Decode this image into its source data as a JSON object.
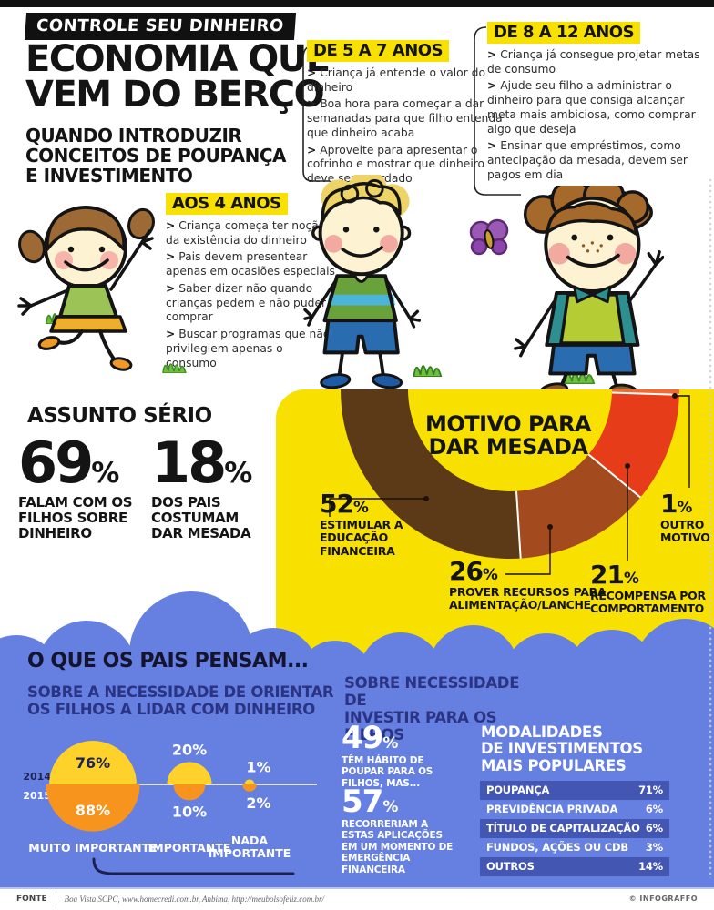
{
  "bullet_marker": ">",
  "header": {
    "tag": "CONTROLE SEU DINHEIRO",
    "title_lines": [
      "ECONOMIA QUE",
      "VEM DO BERÇO"
    ],
    "subtitle_lines": [
      "QUANDO INTRODUZIR",
      "CONCEITOS DE POUPANÇA",
      "E INVESTIMENTO"
    ]
  },
  "age_sections": [
    {
      "label": "AOS 4 ANOS",
      "bullets": [
        "Criança começa ter noção da existência do dinheiro",
        "Pais devem presentear apenas em ocasiões especiais",
        "Saber dizer não quando crianças pedem e não puder comprar",
        "Buscar programas que não privilegiem apenas o consumo"
      ]
    },
    {
      "label": "DE 5 A 7 ANOS",
      "bullets": [
        "Criança já entende o valor do dinheiro",
        "Boa hora para começar a dar semanadas para que filho entenda que dinheiro acaba",
        "Aproveite para apresentar o cofrinho e mostrar que dinheiro deve ser guardado"
      ]
    },
    {
      "label": "DE 8 A 12 ANOS",
      "bullets": [
        "Criança já consegue projetar metas de consumo",
        "Ajude seu filho a administrar o dinheiro para que consiga alcançar meta mais ambiciosa, como comprar algo que deseja",
        "Ensinar que empréstimos, como antecipação da mesada, devem ser pagos em dia"
      ]
    }
  ],
  "assunto": {
    "heading": "ASSUNTO SÉRIO",
    "stats": [
      {
        "number": "69",
        "suffix": "%",
        "label_lines": [
          "FALAM COM OS",
          "FILHOS SOBRE",
          "DINHEIRO"
        ]
      },
      {
        "number": "18",
        "suffix": "%",
        "label_lines": [
          "DOS PAIS",
          "COSTUMAM",
          "DAR MESADA"
        ]
      }
    ]
  },
  "chart_data": [
    {
      "type": "pie",
      "variant": "half-donut",
      "title": "MOTIVO PARA DAR MESADA",
      "suffix": "%",
      "background": "#f8e000",
      "slices": [
        {
          "label": "ESTIMULAR A EDUCAÇÃO FINANCEIRA",
          "label_lines": [
            "ESTIMULAR A",
            "EDUCAÇÃO",
            "FINANCEIRA"
          ],
          "value": 52,
          "color": "#5d3a17"
        },
        {
          "label": "PROVER RECURSOS PARA ALIMENTAÇÃO/LANCHE",
          "label_lines": [
            "PROVER RECURSOS PARA",
            "ALIMENTAÇÃO/LANCHE"
          ],
          "value": 26,
          "color": "#a34a1f"
        },
        {
          "label": "RECOMPENSA POR COMPORTAMENTO",
          "label_lines": [
            "RECOMPENSA POR",
            "COMPORTAMENTO"
          ],
          "value": 21,
          "color": "#e73c1a"
        },
        {
          "label": "OUTRO MOTIVO",
          "label_lines": [
            "OUTRO",
            "MOTIVO"
          ],
          "value": 1,
          "color": "#f06a31"
        }
      ]
    },
    {
      "type": "bubble",
      "title": "SOBRE A NECESSIDADE DE ORIENTAR OS FILHOS A LIDAR COM DINHEIRO",
      "suffix": "%",
      "categories": [
        [
          "MUITO IMPORTANTE"
        ],
        [
          "IMPORTANTE"
        ],
        [
          "NADA",
          "IMPORTANTE"
        ]
      ],
      "series": [
        {
          "name": "2014",
          "color": "#ffd22b",
          "values": [
            76,
            20,
            1
          ]
        },
        {
          "name": "2015",
          "color": "#f7941e",
          "values": [
            88,
            10,
            2
          ]
        }
      ]
    },
    {
      "type": "table",
      "title_lines": [
        "MODALIDADES",
        "DE INVESTIMENTOS",
        "MAIS POPULARES"
      ],
      "rows": [
        [
          "POUPANÇA",
          "71%"
        ],
        [
          "PREVIDÊNCIA PRIVADA",
          "6%"
        ],
        [
          "TÍTULO DE CAPITALIZAÇÃO",
          "6%"
        ],
        [
          "FUNDOS, AÇÕES OU CDB",
          "3%"
        ],
        [
          "OUTROS",
          "14%"
        ]
      ]
    }
  ],
  "pensam": {
    "heading": "O QUE OS PAIS PENSAM...",
    "left_sub_lines": [
      "SOBRE A NECESSIDADE DE ORIENTAR",
      "OS FILHOS A LIDAR COM DINHEIRO"
    ],
    "right_sub_lines": [
      "SOBRE NECESSIDADE DE",
      "INVESTIR PARA OS FILHOS"
    ],
    "invest_stats": [
      {
        "number": "49",
        "suffix": "%",
        "caption_lines": [
          "TÊM HÁBITO DE",
          "POUPAR PARA OS",
          "FILHOS, MAS..."
        ]
      },
      {
        "number": "57",
        "suffix": "%",
        "caption_lines": [
          "RECORRERIAM A",
          "ESTAS APLICAÇÕES",
          "EM UM MOMENTO DE",
          "EMERGÊNCIA",
          "FINANCEIRA"
        ]
      }
    ]
  },
  "footer": {
    "label": "FONTE",
    "sources": "Boa Vista SCPC, www.homecredi.com.br, Anbima, http://meubolsofeliz.com.br/",
    "credit_mark": "©",
    "credit": "INFOGRAFFO"
  },
  "colors": {
    "yellow": "#f8e000",
    "blue": "#6680e2",
    "navy": "#2b3383",
    "orange": "#f7941e",
    "gold": "#ffd22b",
    "table_row_dark": "#4356b2"
  }
}
